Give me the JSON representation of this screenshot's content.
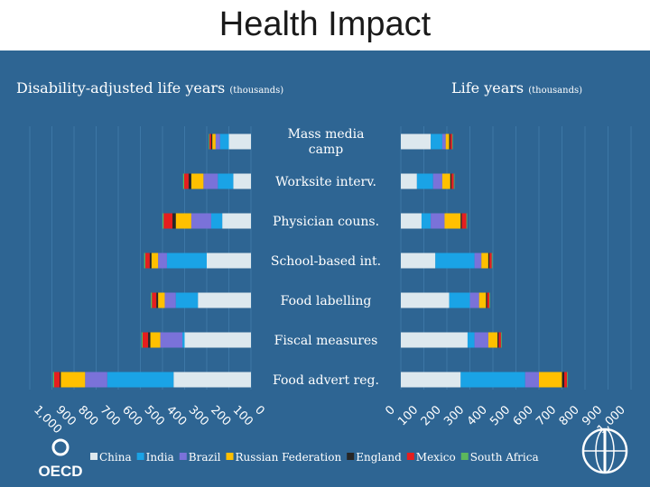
{
  "page": {
    "title": "Health Impact"
  },
  "chart_data": {
    "type": "bar",
    "layout": "mirrored-horizontal-stacked",
    "title": "Health Impact",
    "left_axis": {
      "label": "Disability-adjusted life years",
      "unit": "(thousands)",
      "range": [
        0,
        1000
      ],
      "ticks": [
        "1,000",
        "900",
        "800",
        "700",
        "600",
        "500",
        "400",
        "300",
        "200",
        "100",
        "0"
      ]
    },
    "right_axis": {
      "label": "Life years",
      "unit": "(thousands)",
      "range": [
        0,
        1000
      ],
      "ticks": [
        "0",
        "100",
        "200",
        "300",
        "400",
        "500",
        "600",
        "700",
        "800",
        "900",
        "1,000"
      ]
    },
    "categories": [
      "Mass media camp",
      "Worksite interv.",
      "Physician couns.",
      "School-based int.",
      "Food labelling",
      "Fiscal measures",
      "Food advert reg."
    ],
    "series_names": [
      "China",
      "India",
      "Brazil",
      "Russian Federation",
      "England",
      "Mexico",
      "South Africa"
    ],
    "colors": [
      "#dde8ee",
      "#1aa3e6",
      "#7a72d9",
      "#ffc000",
      "#262626",
      "#e61e1e",
      "#5cb85c"
    ],
    "left_values": [
      [
        100,
        40,
        20,
        15,
        5,
        8,
        3
      ],
      [
        80,
        70,
        65,
        55,
        12,
        20,
        5
      ],
      [
        130,
        50,
        90,
        70,
        15,
        40,
        5
      ],
      [
        200,
        180,
        40,
        30,
        8,
        20,
        5
      ],
      [
        240,
        100,
        50,
        30,
        8,
        20,
        5
      ],
      [
        300,
        10,
        100,
        45,
        10,
        25,
        5
      ],
      [
        350,
        300,
        100,
        110,
        5,
        25,
        5
      ]
    ],
    "right_values": [
      [
        130,
        50,
        15,
        15,
        5,
        8,
        3
      ],
      [
        70,
        70,
        40,
        35,
        5,
        10,
        3
      ],
      [
        90,
        40,
        60,
        70,
        5,
        20,
        3
      ],
      [
        150,
        170,
        30,
        30,
        5,
        10,
        3
      ],
      [
        210,
        90,
        40,
        30,
        5,
        10,
        3
      ],
      [
        290,
        30,
        60,
        40,
        5,
        10,
        3
      ],
      [
        260,
        280,
        60,
        100,
        10,
        12,
        3
      ]
    ],
    "legend": [
      "China",
      "India",
      "Brazil",
      "Russian Federation",
      "England",
      "Mexico",
      "South Africa"
    ],
    "legend_position": "bottom"
  }
}
